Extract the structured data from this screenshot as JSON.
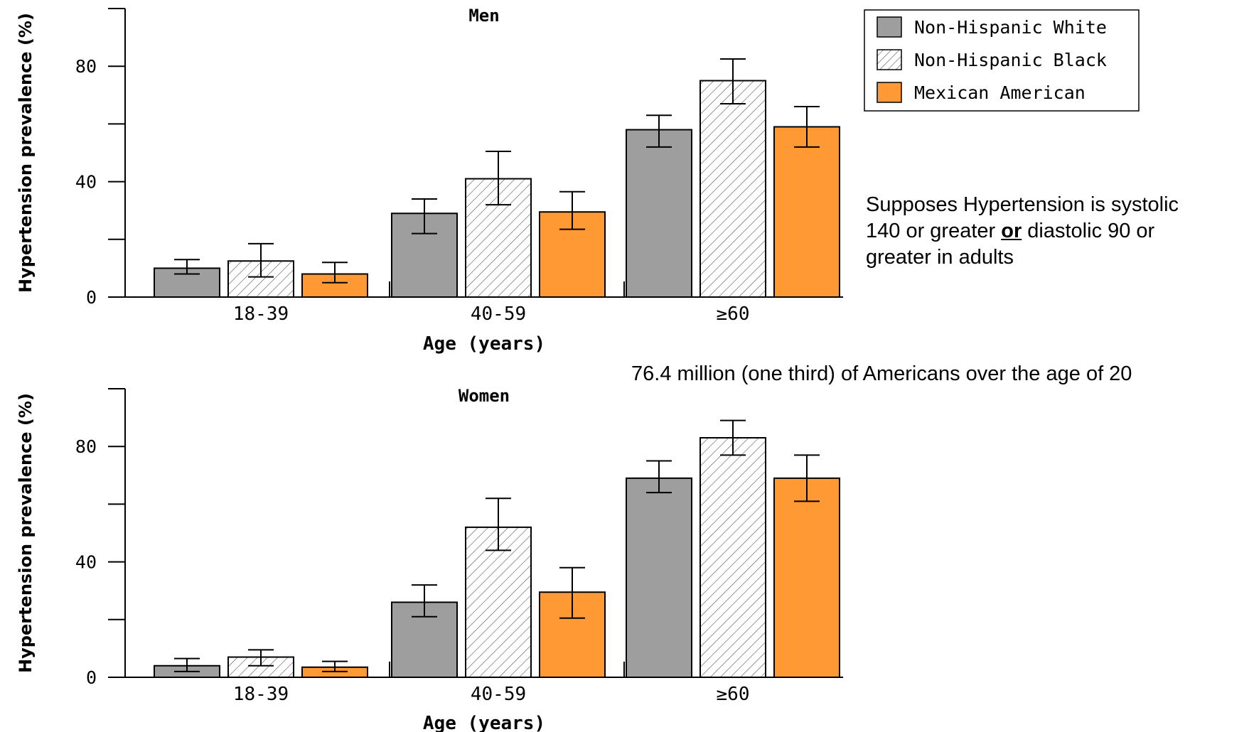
{
  "chart_data": [
    {
      "type": "bar",
      "title": "Men",
      "xlabel": "Age (years)",
      "ylabel": "Hypertension prevalence (%)",
      "categories": [
        "18-39",
        "40-59",
        "≥60"
      ],
      "ylim": [
        0,
        100
      ],
      "yticks": [
        0,
        40,
        80
      ],
      "series": [
        {
          "name": "Non-Hispanic White",
          "values": [
            10,
            29,
            58
          ],
          "err_low": [
            8,
            22,
            52
          ],
          "err_high": [
            13,
            34,
            63
          ]
        },
        {
          "name": "Non-Hispanic Black",
          "values": [
            12.5,
            41,
            75
          ],
          "err_low": [
            7,
            32,
            67
          ],
          "err_high": [
            18.5,
            50.5,
            82.5
          ]
        },
        {
          "name": "Mexican American",
          "values": [
            8,
            29.5,
            59
          ],
          "err_low": [
            5,
            23.5,
            52
          ],
          "err_high": [
            12,
            36.5,
            66
          ]
        }
      ],
      "grid": false,
      "legend": "top-right"
    },
    {
      "type": "bar",
      "title": "Women",
      "xlabel": "Age (years)",
      "ylabel": "Hypertension prevalence (%)",
      "categories": [
        "18-39",
        "40-59",
        "≥60"
      ],
      "ylim": [
        0,
        100
      ],
      "yticks": [
        0,
        40,
        80
      ],
      "series": [
        {
          "name": "Non-Hispanic White",
          "values": [
            4,
            26,
            69
          ],
          "err_low": [
            2,
            21,
            64
          ],
          "err_high": [
            6.5,
            32,
            75
          ]
        },
        {
          "name": "Non-Hispanic Black",
          "values": [
            7,
            52,
            83
          ],
          "err_low": [
            4,
            44,
            77
          ],
          "err_high": [
            9.5,
            62,
            89
          ]
        },
        {
          "name": "Mexican American",
          "values": [
            3.5,
            29.5,
            69
          ],
          "err_low": [
            2,
            20.5,
            61
          ],
          "err_high": [
            5.5,
            38,
            77
          ]
        }
      ],
      "grid": false
    }
  ],
  "legend": {
    "items": [
      "Non-Hispanic White",
      "Non-Hispanic Black",
      "Mexican American"
    ]
  },
  "colors": {
    "nh_white": "#9e9e9e",
    "nh_black": "#ffffff",
    "mexican": "#ff9933",
    "stroke": "#000000"
  },
  "annotations": {
    "definition_line1": "Supposes Hypertension is systolic",
    "definition_line2_a": "140 or greater ",
    "definition_line2_or": "or",
    "definition_line2_b": " diastolic 90 or",
    "definition_line3": "greater in adults",
    "population": "76.4 million (one third) of Americans over the age of 20"
  }
}
